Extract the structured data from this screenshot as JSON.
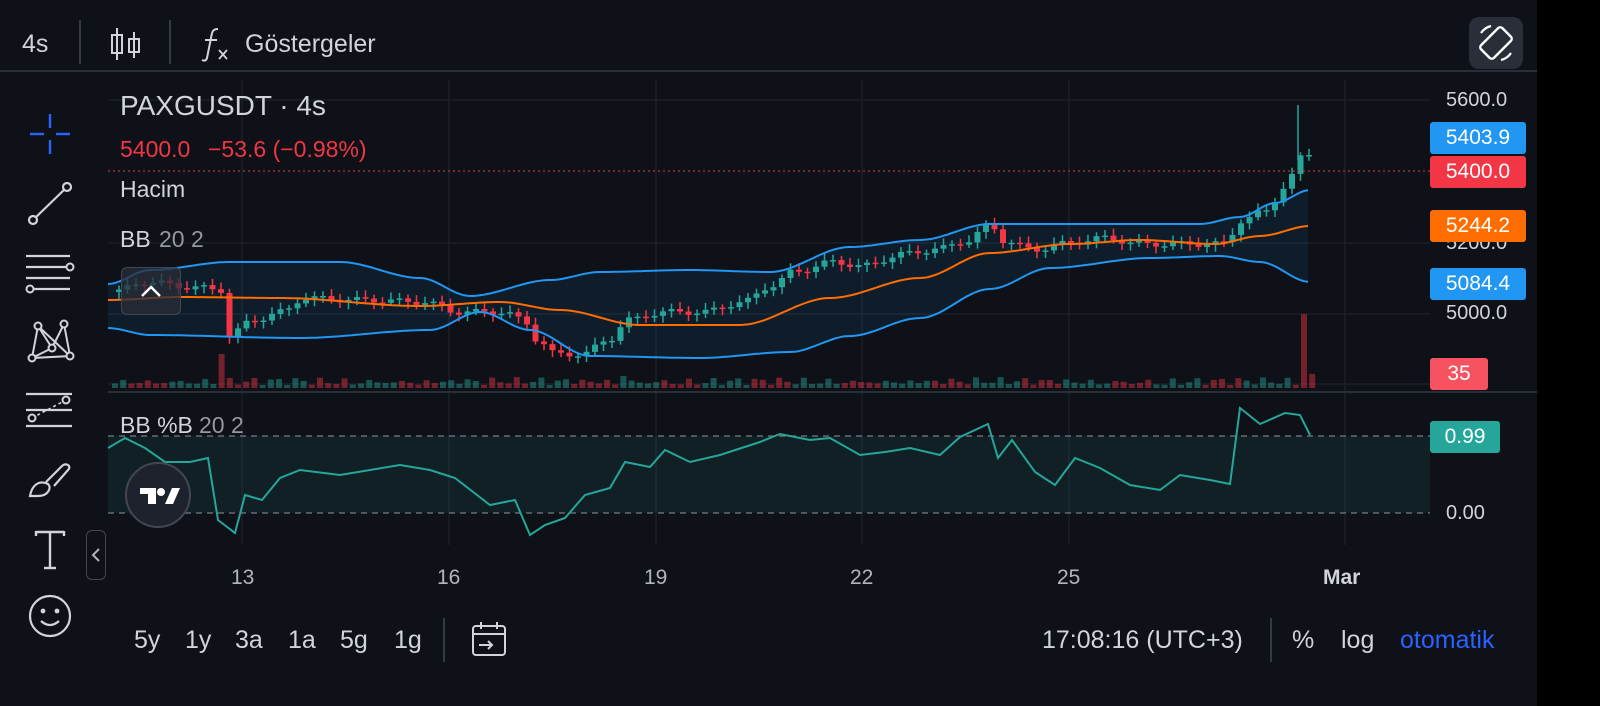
{
  "toolbar": {
    "interval": "4s",
    "indicators_label": "Göstergeler"
  },
  "legend": {
    "symbol": "PAXGUSDT · 4s",
    "last_price": "5400.0",
    "change": "−53.6 (−0.98%)",
    "volume_label": "Hacim",
    "bb_name": "BB",
    "bb_params": "20 2",
    "pctb_name": "BB %B",
    "pctb_params": "20 2"
  },
  "price_axis": {
    "ticks": [
      "5600.0",
      "5200.0",
      "5000.0",
      "00.0"
    ],
    "labels": {
      "bb_upper": "5403.9",
      "last": "5400.0",
      "bb_basis": "5244.2",
      "bb_lower": "5084.4",
      "volume": "35"
    }
  },
  "pctb_axis": {
    "ticks": [
      "0.00"
    ],
    "current": "0.99"
  },
  "time_axis": [
    "13",
    "16",
    "19",
    "22",
    "25",
    "Mar"
  ],
  "ranges": [
    "5y",
    "1y",
    "3a",
    "1a",
    "5g",
    "1g"
  ],
  "footer": {
    "clock": "17:08:16 (UTC+3)",
    "percent": "%",
    "log": "log",
    "auto": "otomatik"
  },
  "colors": {
    "up": "#26a69a",
    "down": "#f23645",
    "bb_band": "#2196f3",
    "bb_basis": "#ff6d00",
    "pctb_line": "#26a69a",
    "accent": "#2962ff"
  },
  "icons": {
    "sidebar": [
      "crosshair-icon",
      "trend-line-icon",
      "fib-retracement-icon",
      "xabcd-pattern-icon",
      "forecast-icon",
      "brush-icon",
      "text-icon",
      "emoji-icon"
    ]
  }
}
